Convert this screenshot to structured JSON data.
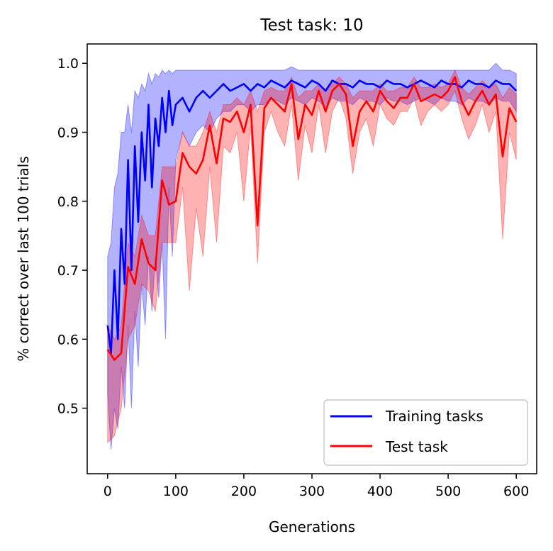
{
  "chart_data": {
    "type": "line",
    "title": "Test task: 10",
    "xlabel": "Generations",
    "ylabel": "% correct over last 100 trials",
    "xlim": [
      -30,
      630
    ],
    "ylim": [
      0.405,
      1.028
    ],
    "xticks": [
      0,
      100,
      200,
      300,
      400,
      500,
      600
    ],
    "yticks": [
      0.5,
      0.6,
      0.7,
      0.8,
      0.9,
      1.0
    ],
    "xtick_labels": [
      "0",
      "100",
      "200",
      "300",
      "400",
      "500",
      "600"
    ],
    "ytick_labels": [
      "0.5",
      "0.6",
      "0.7",
      "0.8",
      "0.9",
      "1.0"
    ],
    "grid": false,
    "legend_position": "lower-right",
    "series": [
      {
        "name": "Training tasks",
        "color": "#0000ff",
        "x": [
          0,
          5,
          10,
          15,
          20,
          25,
          30,
          35,
          40,
          45,
          50,
          55,
          60,
          65,
          70,
          75,
          80,
          85,
          90,
          95,
          100,
          110,
          120,
          130,
          140,
          150,
          160,
          170,
          180,
          190,
          200,
          210,
          220,
          230,
          240,
          250,
          260,
          270,
          280,
          290,
          300,
          310,
          320,
          330,
          340,
          350,
          360,
          370,
          380,
          390,
          400,
          410,
          420,
          430,
          440,
          450,
          460,
          470,
          480,
          490,
          500,
          510,
          520,
          530,
          540,
          550,
          560,
          570,
          580,
          590,
          600
        ],
        "values": [
          0.62,
          0.58,
          0.7,
          0.6,
          0.76,
          0.68,
          0.86,
          0.7,
          0.88,
          0.77,
          0.9,
          0.83,
          0.94,
          0.82,
          0.92,
          0.88,
          0.95,
          0.9,
          0.96,
          0.91,
          0.94,
          0.95,
          0.93,
          0.95,
          0.96,
          0.95,
          0.96,
          0.97,
          0.96,
          0.965,
          0.97,
          0.96,
          0.97,
          0.965,
          0.975,
          0.97,
          0.965,
          0.975,
          0.97,
          0.965,
          0.975,
          0.97,
          0.96,
          0.975,
          0.97,
          0.97,
          0.965,
          0.975,
          0.97,
          0.97,
          0.965,
          0.975,
          0.97,
          0.97,
          0.965,
          0.97,
          0.975,
          0.97,
          0.965,
          0.975,
          0.97,
          0.97,
          0.965,
          0.975,
          0.97,
          0.97,
          0.965,
          0.975,
          0.97,
          0.97,
          0.96
        ],
        "upper": [
          0.72,
          0.74,
          0.82,
          0.84,
          0.9,
          0.9,
          0.94,
          0.9,
          0.96,
          0.95,
          0.97,
          0.96,
          0.985,
          0.97,
          0.985,
          0.98,
          0.99,
          0.985,
          0.99,
          0.985,
          0.99,
          0.99,
          0.99,
          0.99,
          0.99,
          0.99,
          0.99,
          0.99,
          0.99,
          0.99,
          0.99,
          0.99,
          0.99,
          0.99,
          0.99,
          0.99,
          0.99,
          0.995,
          0.99,
          0.99,
          0.99,
          0.99,
          0.99,
          0.99,
          0.99,
          0.99,
          0.99,
          0.99,
          0.99,
          0.99,
          0.99,
          0.99,
          0.99,
          0.99,
          0.99,
          0.99,
          0.99,
          0.99,
          0.99,
          0.99,
          0.99,
          0.99,
          0.99,
          0.99,
          0.99,
          0.99,
          0.99,
          1.0,
          0.99,
          0.99,
          0.985
        ],
        "lower": [
          0.52,
          0.44,
          0.5,
          0.47,
          0.56,
          0.5,
          0.62,
          0.5,
          0.64,
          0.56,
          0.68,
          0.62,
          0.72,
          0.64,
          0.72,
          0.66,
          0.74,
          0.6,
          0.82,
          0.72,
          0.86,
          0.9,
          0.88,
          0.9,
          0.91,
          0.9,
          0.92,
          0.93,
          0.93,
          0.94,
          0.94,
          0.93,
          0.94,
          0.94,
          0.95,
          0.945,
          0.94,
          0.95,
          0.945,
          0.94,
          0.95,
          0.945,
          0.935,
          0.95,
          0.945,
          0.945,
          0.94,
          0.95,
          0.945,
          0.945,
          0.94,
          0.95,
          0.945,
          0.945,
          0.94,
          0.945,
          0.95,
          0.945,
          0.94,
          0.95,
          0.945,
          0.945,
          0.94,
          0.95,
          0.945,
          0.945,
          0.94,
          0.95,
          0.945,
          0.945,
          0.93
        ]
      },
      {
        "name": "Test task",
        "color": "#ff0000",
        "x": [
          0,
          10,
          20,
          30,
          40,
          50,
          60,
          70,
          80,
          90,
          100,
          110,
          120,
          130,
          140,
          150,
          160,
          170,
          180,
          190,
          200,
          210,
          220,
          230,
          240,
          250,
          260,
          270,
          280,
          290,
          300,
          310,
          320,
          330,
          340,
          350,
          360,
          370,
          380,
          390,
          400,
          410,
          420,
          430,
          440,
          450,
          460,
          470,
          480,
          490,
          500,
          510,
          520,
          530,
          540,
          550,
          560,
          570,
          580,
          590,
          600
        ],
        "values": [
          0.585,
          0.57,
          0.58,
          0.705,
          0.68,
          0.745,
          0.71,
          0.7,
          0.83,
          0.795,
          0.8,
          0.87,
          0.85,
          0.84,
          0.86,
          0.91,
          0.855,
          0.92,
          0.915,
          0.93,
          0.9,
          0.94,
          0.765,
          0.935,
          0.95,
          0.94,
          0.93,
          0.97,
          0.89,
          0.94,
          0.925,
          0.96,
          0.93,
          0.96,
          0.97,
          0.955,
          0.88,
          0.93,
          0.945,
          0.93,
          0.96,
          0.945,
          0.935,
          0.95,
          0.95,
          0.97,
          0.945,
          0.95,
          0.955,
          0.95,
          0.96,
          0.98,
          0.945,
          0.925,
          0.945,
          0.96,
          0.94,
          0.955,
          0.865,
          0.935,
          0.915
        ],
        "upper": [
          0.62,
          0.6,
          0.62,
          0.74,
          0.72,
          0.78,
          0.75,
          0.75,
          0.85,
          0.85,
          0.85,
          0.9,
          0.88,
          0.88,
          0.9,
          0.93,
          0.9,
          0.94,
          0.94,
          0.95,
          0.94,
          0.96,
          0.93,
          0.96,
          0.965,
          0.96,
          0.96,
          0.98,
          0.95,
          0.96,
          0.96,
          0.97,
          0.96,
          0.97,
          0.98,
          0.97,
          0.95,
          0.96,
          0.96,
          0.96,
          0.97,
          0.96,
          0.96,
          0.965,
          0.965,
          0.98,
          0.965,
          0.965,
          0.97,
          0.965,
          0.97,
          0.99,
          0.965,
          0.955,
          0.965,
          0.975,
          0.965,
          0.97,
          0.95,
          0.965,
          0.955
        ],
        "lower": [
          0.45,
          0.46,
          0.5,
          0.6,
          0.62,
          0.68,
          0.67,
          0.64,
          0.74,
          0.74,
          0.74,
          0.82,
          0.67,
          0.79,
          0.72,
          0.85,
          0.74,
          0.88,
          0.87,
          0.9,
          0.8,
          0.91,
          0.71,
          0.9,
          0.93,
          0.9,
          0.88,
          0.94,
          0.83,
          0.91,
          0.87,
          0.94,
          0.87,
          0.93,
          0.95,
          0.92,
          0.84,
          0.9,
          0.92,
          0.88,
          0.94,
          0.92,
          0.91,
          0.93,
          0.93,
          0.95,
          0.91,
          0.93,
          0.94,
          0.93,
          0.94,
          0.96,
          0.92,
          0.89,
          0.91,
          0.94,
          0.9,
          0.93,
          0.745,
          0.9,
          0.86
        ]
      }
    ]
  }
}
